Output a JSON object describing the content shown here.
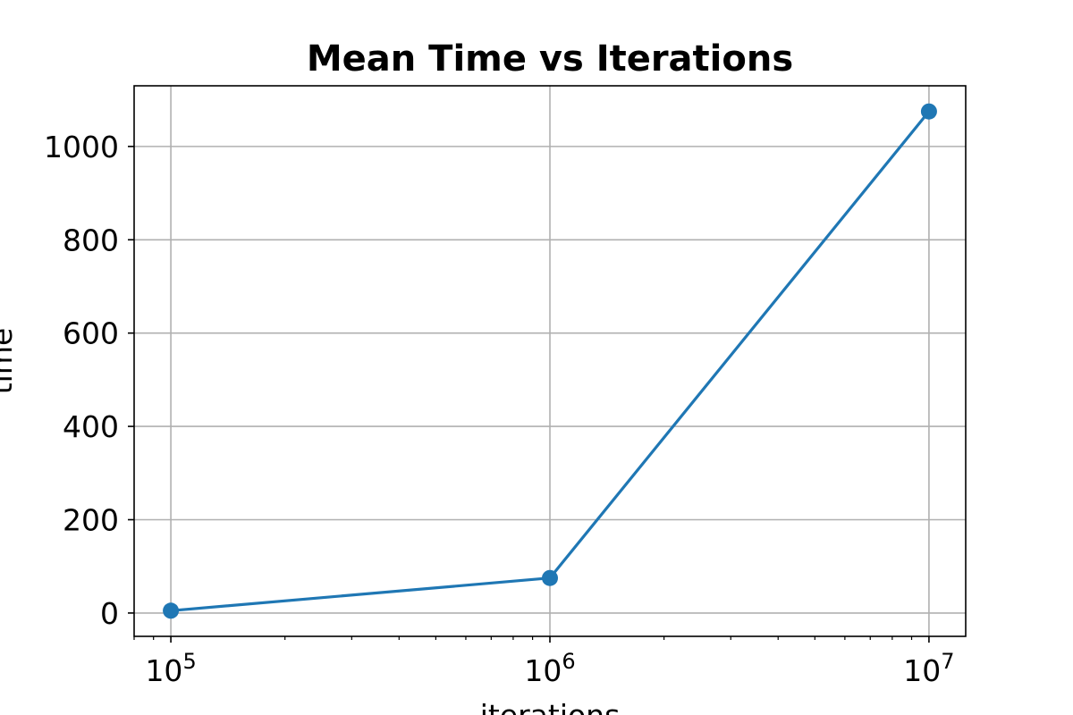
{
  "chart_data": {
    "type": "line",
    "title": "Mean Time vs Iterations",
    "xlabel": "iterations",
    "ylabel": "time",
    "x_scale": "log",
    "x": [
      100000,
      1000000,
      10000000
    ],
    "x_tick_labels": [
      {
        "value": 100000,
        "base": "10",
        "exp": "5"
      },
      {
        "value": 1000000,
        "base": "10",
        "exp": "6"
      },
      {
        "value": 10000000,
        "base": "10",
        "exp": "7"
      }
    ],
    "y_ticks": [
      0,
      200,
      400,
      600,
      800,
      1000
    ],
    "xlim": [
      80000,
      12500000
    ],
    "ylim": [
      -50,
      1130
    ],
    "grid": true,
    "series": [
      {
        "values": [
          5,
          75,
          1075
        ],
        "color": "#1f77b4",
        "marker": "circle"
      }
    ]
  }
}
